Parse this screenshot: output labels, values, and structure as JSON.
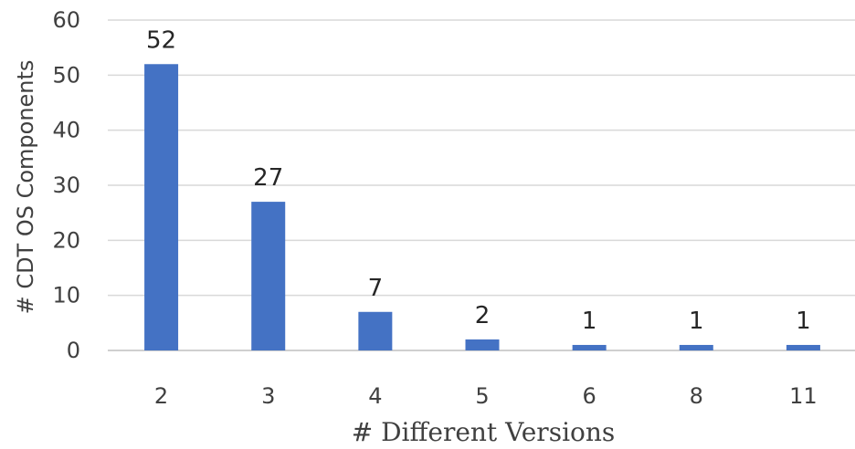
{
  "chart_data": {
    "type": "bar",
    "categories": [
      "2",
      "3",
      "4",
      "5",
      "6",
      "8",
      "11"
    ],
    "values": [
      52,
      27,
      7,
      2,
      1,
      1,
      1
    ],
    "data_labels": [
      "52",
      "27",
      "7",
      "2",
      "1",
      "1",
      "1"
    ],
    "title": "",
    "xlabel": "# Different Versions",
    "ylabel": "# CDT OS Components",
    "ylim": [
      0,
      60
    ],
    "yticks": [
      "0",
      "10",
      "20",
      "30",
      "40",
      "50",
      "60"
    ],
    "grid": "horizontal",
    "bar_color": "#4472c4"
  }
}
